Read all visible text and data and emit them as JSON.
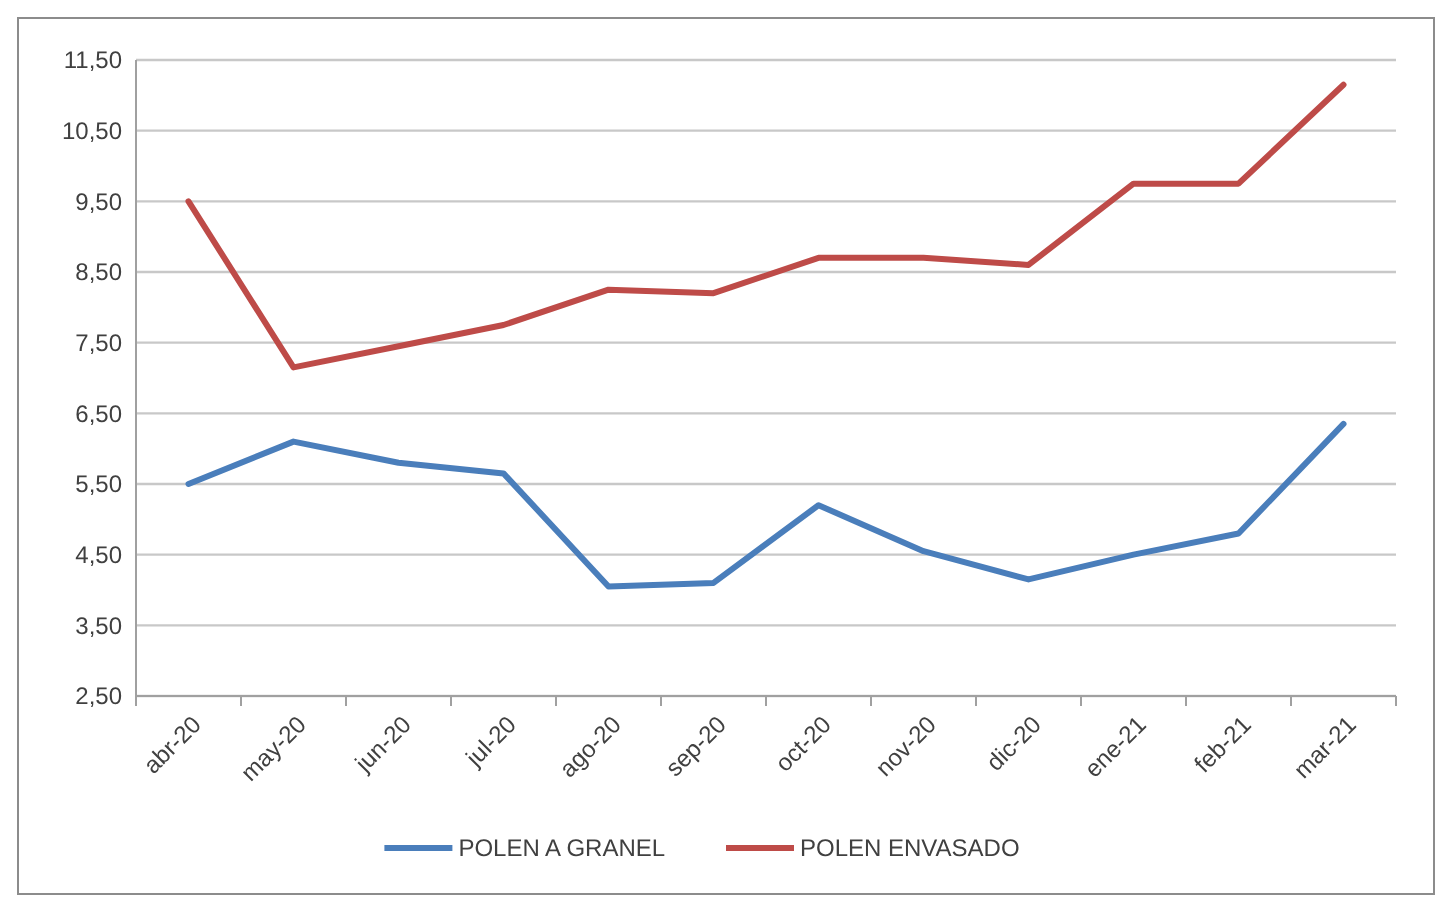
{
  "chart_data": {
    "type": "line",
    "categories": [
      "abr-20",
      "may-20",
      "jun-20",
      "jul-20",
      "ago-20",
      "sep-20",
      "oct-20",
      "nov-20",
      "dic-20",
      "ene-21",
      "feb-21",
      "mar-21"
    ],
    "series": [
      {
        "name": "POLEN A GRANEL",
        "color": "#4a7ebb",
        "values": [
          5.5,
          6.1,
          5.8,
          5.65,
          4.05,
          4.1,
          5.2,
          4.55,
          4.15,
          4.5,
          4.8,
          6.35
        ]
      },
      {
        "name": "POLEN ENVASADO",
        "color": "#be4b48",
        "values": [
          9.5,
          7.15,
          7.45,
          7.75,
          8.25,
          8.2,
          8.7,
          8.7,
          8.6,
          9.75,
          9.75,
          11.15
        ]
      }
    ],
    "ylim": [
      2.5,
      11.5
    ],
    "yticks": [
      {
        "value": 2.5,
        "label": "2,50"
      },
      {
        "value": 3.5,
        "label": "3,50"
      },
      {
        "value": 4.5,
        "label": "4,50"
      },
      {
        "value": 5.5,
        "label": "5,50"
      },
      {
        "value": 6.5,
        "label": "6,50"
      },
      {
        "value": 7.5,
        "label": "7,50"
      },
      {
        "value": 8.5,
        "label": "8,50"
      },
      {
        "value": 9.5,
        "label": "9,50"
      },
      {
        "value": 10.5,
        "label": "10,50"
      },
      {
        "value": 11.5,
        "label": "11,50"
      }
    ],
    "grid": "y",
    "legend": "bottom",
    "marker": "none",
    "line_style": "solid"
  }
}
